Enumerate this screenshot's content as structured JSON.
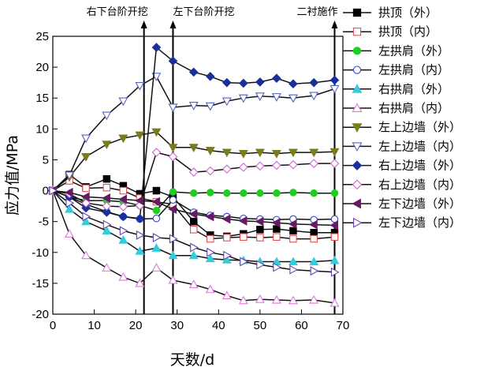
{
  "chart_data": {
    "type": "line",
    "xlabel": "天数/d",
    "ylabel": "应力值/MPa",
    "xlim": [
      0,
      70
    ],
    "ylim": [
      -20,
      25
    ],
    "xticks": [
      0,
      10,
      20,
      30,
      40,
      50,
      60,
      70
    ],
    "yticks": [
      -20,
      -15,
      -10,
      -5,
      0,
      5,
      10,
      15,
      20,
      25
    ],
    "grid": false,
    "legend_position": "right",
    "annotations": [
      {
        "text": "右下台阶开挖",
        "x": 22
      },
      {
        "text": "左下台阶开挖",
        "x": 29
      },
      {
        "text": "二衬施作",
        "x": 68
      }
    ],
    "series": [
      {
        "name": "拱顶（外）",
        "color": "#000000",
        "marker": "square",
        "filled": true,
        "x": [
          0,
          4,
          8,
          13,
          17,
          21,
          25,
          29,
          34,
          38,
          42,
          46,
          50,
          54,
          58,
          63,
          68
        ],
        "y": [
          0,
          2.6,
          0.6,
          1.9,
          0.8,
          -0.5,
          0,
          -1,
          -5,
          -7.2,
          -7.4,
          -7,
          -6.3,
          -6.2,
          -6.5,
          -6.8,
          -6.8
        ]
      },
      {
        "name": "拱顶（内）",
        "color": "#e05050",
        "marker": "square",
        "filled": false,
        "x": [
          0,
          4,
          8,
          13,
          17,
          21,
          25,
          29,
          34,
          38,
          42,
          46,
          50,
          54,
          58,
          63,
          68
        ],
        "y": [
          0,
          1.6,
          0.4,
          0.5,
          0,
          -1.2,
          -1.8,
          -2.2,
          -6.3,
          -7.8,
          -7.6,
          -7.5,
          -7.6,
          -7.5,
          -7.8,
          -7.8,
          -7.5
        ]
      },
      {
        "name": "左拱肩（外）",
        "color": "#22cc22",
        "marker": "circle",
        "filled": true,
        "x": [
          0,
          4,
          8,
          13,
          17,
          21,
          25,
          29,
          34,
          38,
          42,
          46,
          50,
          54,
          58,
          63,
          68
        ],
        "y": [
          0,
          -1,
          -1.6,
          -1.6,
          -1.8,
          -2.4,
          -3.2,
          -0.2,
          -0.4,
          -0.3,
          -0.4,
          -0.4,
          -0.4,
          -0.4,
          -0.3,
          -0.4,
          -0.4
        ]
      },
      {
        "name": "左拱肩（内）",
        "color": "#3344cc",
        "marker": "circle",
        "filled": false,
        "x": [
          0,
          4,
          8,
          13,
          17,
          21,
          25,
          29,
          34,
          38,
          42,
          46,
          50,
          54,
          58,
          63,
          68
        ],
        "y": [
          0,
          -1,
          -2.2,
          -3.4,
          -4.2,
          -4.6,
          -4.5,
          -1.5,
          -3.5,
          -4,
          -4.2,
          -4.5,
          -4.6,
          -4.7,
          -4.6,
          -4.7,
          -4.6
        ]
      },
      {
        "name": "右拱肩（外）",
        "color": "#33ccdd",
        "marker": "triangle-up",
        "filled": true,
        "x": [
          0,
          4,
          8,
          13,
          17,
          21,
          25,
          29,
          34,
          38,
          42,
          46,
          50,
          54,
          58,
          63,
          68
        ],
        "y": [
          0,
          -3,
          -5,
          -6.5,
          -8,
          -9.8,
          -9.3,
          -10.5,
          -10.5,
          -11,
          -11.2,
          -11.3,
          -11.5,
          -11.5,
          -11.5,
          -11.5,
          -11.3
        ]
      },
      {
        "name": "右拱肩（内）",
        "color": "#dd77dd",
        "marker": "triangle-up",
        "filled": false,
        "x": [
          0,
          4,
          8,
          13,
          17,
          21,
          25,
          29,
          34,
          38,
          42,
          46,
          50,
          54,
          58,
          63,
          68
        ],
        "y": [
          0,
          -7,
          -10.5,
          -12.5,
          -14,
          -15,
          -12.5,
          -14.5,
          -15.2,
          -16,
          -17,
          -17.8,
          -17.6,
          -17.7,
          -17.8,
          -17.7,
          -18.2
        ]
      },
      {
        "name": "左上边墙（外）",
        "color": "#7a7a1e",
        "marker": "triangle-down",
        "filled": true,
        "x": [
          0,
          4,
          8,
          13,
          17,
          21,
          25,
          29,
          34,
          38,
          42,
          46,
          50,
          54,
          58,
          63,
          68
        ],
        "y": [
          0,
          2.2,
          5.5,
          7.5,
          8.5,
          9,
          9.5,
          7,
          7,
          6.5,
          6.2,
          6,
          6.2,
          6,
          6.2,
          6.2,
          6.3
        ]
      },
      {
        "name": "左上边墙（内）",
        "color": "#5566bb",
        "marker": "triangle-down",
        "filled": false,
        "x": [
          0,
          4,
          8,
          13,
          17,
          21,
          25,
          29,
          34,
          38,
          42,
          46,
          50,
          54,
          58,
          63,
          68
        ],
        "y": [
          0,
          2.5,
          8.5,
          12.2,
          14.5,
          17,
          18.5,
          13.5,
          13.8,
          13.7,
          14.5,
          15,
          15.3,
          15.2,
          15,
          15.4,
          16.5
        ]
      },
      {
        "name": "右上边墙（外）",
        "color": "#1a2f99",
        "marker": "diamond",
        "filled": true,
        "x": [
          0,
          4,
          8,
          13,
          17,
          21,
          25,
          29,
          34,
          38,
          42,
          46,
          50,
          54,
          58,
          63,
          68
        ],
        "y": [
          0,
          -1,
          -2.8,
          -3.5,
          -4.2,
          -4.5,
          23.2,
          21,
          19.2,
          18.5,
          17.5,
          17.4,
          17.6,
          18.2,
          17.3,
          17.5,
          17.9
        ]
      },
      {
        "name": "右上边墙（内）",
        "color": "#cc66cc",
        "marker": "diamond",
        "filled": false,
        "x": [
          0,
          4,
          8,
          13,
          17,
          21,
          25,
          29,
          34,
          38,
          42,
          46,
          50,
          54,
          58,
          63,
          68
        ],
        "y": [
          0,
          -0.5,
          -2,
          -2.5,
          -2.6,
          -2.4,
          6.2,
          5.5,
          3,
          3.2,
          3.5,
          3.8,
          4,
          4.1,
          4.2,
          4.4,
          4.4
        ]
      },
      {
        "name": "左下边墙（外）",
        "color": "#661a66",
        "marker": "triangle-left",
        "filled": true,
        "x": [
          0,
          4,
          8,
          13,
          17,
          21,
          25,
          29,
          34,
          38,
          42,
          46,
          50,
          54,
          58,
          63,
          68
        ],
        "y": [
          0,
          -0.3,
          -1,
          -1.2,
          -1.4,
          -1.6,
          -1.8,
          -3,
          -3.8,
          -4.2,
          -4.6,
          -4.9,
          -5,
          -5.2,
          -5.4,
          -5.5,
          -5.6
        ]
      },
      {
        "name": "左下边墙（内）",
        "color": "#6644aa",
        "marker": "triangle-right",
        "filled": false,
        "x": [
          0,
          4,
          8,
          13,
          17,
          21,
          25,
          29,
          34,
          38,
          42,
          46,
          50,
          54,
          58,
          63,
          68
        ],
        "y": [
          0,
          -2,
          -4.2,
          -5.5,
          -6.5,
          -7.2,
          -7.6,
          -7.8,
          -9.2,
          -10,
          -10.5,
          -11.5,
          -12,
          -12.4,
          -12.8,
          -13,
          -13.2
        ]
      }
    ]
  }
}
